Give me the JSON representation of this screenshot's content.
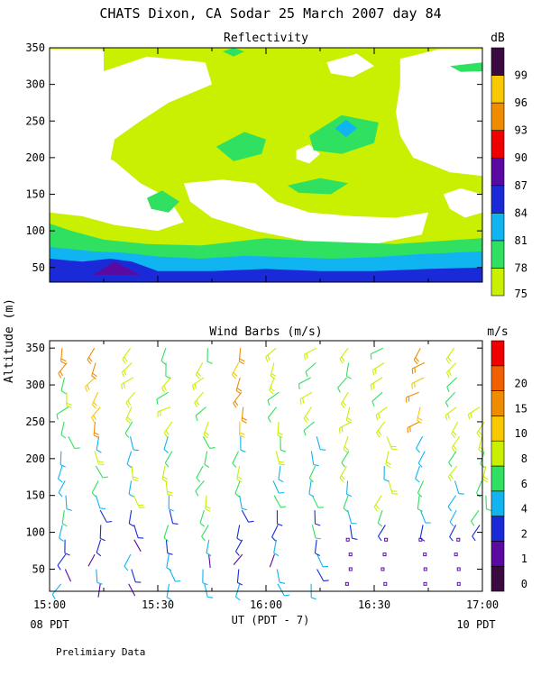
{
  "title": "CHATS Dixon, CA  Sodar  25 March 2007  day  84",
  "shared_ylabel": "Altitude (m)",
  "x_axis": {
    "label": "UT  (PDT - 7)",
    "ticks": [
      "15:00",
      "15:30",
      "16:00",
      "16:30",
      "17:00"
    ],
    "left_note": "08 PDT",
    "right_note": "10 PDT"
  },
  "footer": "Prelimiary Data",
  "chart_data": [
    {
      "type": "heatmap",
      "title": "Reflectivity",
      "x_range_hours": [
        15.0,
        17.0
      ],
      "ylim": [
        30,
        350
      ],
      "y_ticks": [
        50,
        100,
        150,
        200,
        250,
        300,
        350
      ],
      "colorbar": {
        "unit": "dB",
        "labels": [
          "75",
          "78",
          "81",
          "84",
          "87",
          "90",
          "93",
          "96",
          "99"
        ],
        "colors": [
          "#c8f000",
          "#30e060",
          "#10b4f0",
          "#1a2ad8",
          "#5a0aa0",
          "#f00000",
          "#f08c00",
          "#f8c800",
          "#3a0a40"
        ]
      },
      "background_level_color": "#c8f000",
      "regions": [
        {
          "level": "<75",
          "color": "#ffffff",
          "points": [
            [
              15.0,
              348
            ],
            [
              15.25,
              348
            ],
            [
              15.25,
              318
            ],
            [
              15.45,
              338
            ],
            [
              15.72,
              330
            ],
            [
              15.75,
              300
            ],
            [
              15.55,
              275
            ],
            [
              15.42,
              250
            ],
            [
              15.3,
              225
            ],
            [
              15.28,
              195
            ],
            [
              15.12,
              175
            ],
            [
              15.0,
              185
            ]
          ]
        },
        {
          "level": "<75",
          "color": "#ffffff",
          "points": [
            [
              15.0,
              220
            ],
            [
              15.2,
              210
            ],
            [
              15.3,
              195
            ],
            [
              15.42,
              165
            ],
            [
              15.55,
              145
            ],
            [
              15.62,
              112
            ],
            [
              15.5,
              100
            ],
            [
              15.3,
              108
            ],
            [
              15.15,
              120
            ],
            [
              15.0,
              125
            ]
          ]
        },
        {
          "level": "<75",
          "color": "#ffffff",
          "points": [
            [
              15.62,
              165
            ],
            [
              15.8,
              170
            ],
            [
              15.95,
              165
            ],
            [
              16.05,
              140
            ],
            [
              16.2,
              125
            ],
            [
              16.4,
              120
            ],
            [
              16.6,
              118
            ],
            [
              16.75,
              125
            ],
            [
              16.72,
              95
            ],
            [
              16.5,
              82
            ],
            [
              16.2,
              85
            ],
            [
              15.95,
              100
            ],
            [
              15.75,
              118
            ],
            [
              15.65,
              140
            ]
          ]
        },
        {
          "level": "<75",
          "color": "#ffffff",
          "points": [
            [
              16.62,
              335
            ],
            [
              16.8,
              348
            ],
            [
              17.0,
              348
            ],
            [
              17.0,
              175
            ],
            [
              16.85,
              180
            ],
            [
              16.68,
              200
            ],
            [
              16.62,
              230
            ],
            [
              16.6,
              262
            ],
            [
              16.62,
              300
            ]
          ]
        },
        {
          "level": "<75",
          "color": "#ffffff",
          "points": [
            [
              16.28,
              330
            ],
            [
              16.42,
              342
            ],
            [
              16.5,
              325
            ],
            [
              16.4,
              310
            ],
            [
              16.3,
              315
            ]
          ]
        },
        {
          "level": "<75",
          "color": "#ffffff",
          "points": [
            [
              16.14,
              210
            ],
            [
              16.2,
              218
            ],
            [
              16.25,
              205
            ],
            [
              16.2,
              192
            ],
            [
              16.14,
              198
            ]
          ]
        },
        {
          "level": "<75",
          "color": "#ffffff",
          "points": [
            [
              16.82,
              150
            ],
            [
              16.9,
              158
            ],
            [
              17.0,
              150
            ],
            [
              17.0,
              125
            ],
            [
              16.92,
              118
            ],
            [
              16.85,
              130
            ]
          ]
        },
        {
          "level": "78",
          "color": "#30e060",
          "points": [
            [
              15.0,
              110
            ],
            [
              15.1,
              100
            ],
            [
              15.25,
              88
            ],
            [
              15.45,
              82
            ],
            [
              15.7,
              80
            ],
            [
              15.85,
              85
            ],
            [
              16.0,
              90
            ],
            [
              16.2,
              86
            ],
            [
              16.4,
              84
            ],
            [
              16.6,
              82
            ],
            [
              16.8,
              86
            ],
            [
              17.0,
              90
            ],
            [
              17.0,
              30
            ],
            [
              15.0,
              30
            ]
          ]
        },
        {
          "level": "78",
          "color": "#30e060",
          "points": [
            [
              15.77,
              215
            ],
            [
              15.9,
              235
            ],
            [
              16.0,
              225
            ],
            [
              15.98,
              205
            ],
            [
              15.85,
              195
            ]
          ]
        },
        {
          "level": "78",
          "color": "#30e060",
          "points": [
            [
              16.2,
              230
            ],
            [
              16.35,
              258
            ],
            [
              16.52,
              248
            ],
            [
              16.5,
              220
            ],
            [
              16.35,
              205
            ],
            [
              16.22,
              210
            ]
          ]
        },
        {
          "level": "78",
          "color": "#30e060",
          "points": [
            [
              15.45,
              145
            ],
            [
              15.52,
              155
            ],
            [
              15.6,
              140
            ],
            [
              15.55,
              125
            ],
            [
              15.47,
              130
            ]
          ]
        },
        {
          "level": "78",
          "color": "#30e060",
          "points": [
            [
              16.1,
              162
            ],
            [
              16.25,
              172
            ],
            [
              16.38,
              165
            ],
            [
              16.3,
              150
            ],
            [
              16.15,
              152
            ]
          ]
        },
        {
          "level": "78",
          "color": "#30e060",
          "points": [
            [
              16.85,
              325
            ],
            [
              17.0,
              330
            ],
            [
              17.0,
              318
            ],
            [
              16.9,
              317
            ]
          ]
        },
        {
          "level": "78",
          "color": "#30e060",
          "points": [
            [
              15.8,
              345
            ],
            [
              15.85,
              350
            ],
            [
              15.9,
              345
            ],
            [
              15.85,
              338
            ]
          ]
        },
        {
          "level": "81",
          "color": "#10b4f0",
          "points": [
            [
              15.0,
              78
            ],
            [
              15.2,
              72
            ],
            [
              15.35,
              70
            ],
            [
              15.5,
              65
            ],
            [
              15.7,
              62
            ],
            [
              15.9,
              66
            ],
            [
              16.1,
              64
            ],
            [
              16.3,
              62
            ],
            [
              16.5,
              64
            ],
            [
              16.7,
              68
            ],
            [
              16.85,
              70
            ],
            [
              17.0,
              72
            ],
            [
              17.0,
              30
            ],
            [
              15.0,
              30
            ]
          ]
        },
        {
          "level": "81",
          "color": "#10b4f0",
          "points": [
            [
              16.32,
              240
            ],
            [
              16.37,
              252
            ],
            [
              16.42,
              240
            ],
            [
              16.37,
              228
            ]
          ]
        },
        {
          "level": "84",
          "color": "#1a2ad8",
          "points": [
            [
              15.0,
              62
            ],
            [
              15.15,
              58
            ],
            [
              15.28,
              62
            ],
            [
              15.38,
              58
            ],
            [
              15.5,
              45
            ],
            [
              15.75,
              45
            ],
            [
              16.0,
              48
            ],
            [
              16.25,
              45
            ],
            [
              16.5,
              45
            ],
            [
              16.75,
              48
            ],
            [
              17.0,
              50
            ],
            [
              17.0,
              30
            ],
            [
              15.0,
              30
            ]
          ]
        },
        {
          "level": "87",
          "color": "#5a0aa0",
          "points": [
            [
              15.2,
              40
            ],
            [
              15.3,
              58
            ],
            [
              15.42,
              40
            ]
          ]
        }
      ]
    },
    {
      "type": "wind_barbs",
      "title": "Wind Barbs (m/s)",
      "x_range_hours": [
        15.0,
        17.0
      ],
      "ylim": [
        20,
        360
      ],
      "y_ticks": [
        50,
        100,
        150,
        200,
        250,
        300,
        350
      ],
      "times": [
        15.07,
        15.22,
        15.38,
        15.55,
        15.72,
        15.88,
        16.05,
        16.22,
        16.38,
        16.55,
        16.72,
        16.88,
        17.0
      ],
      "altitudes": [
        30,
        50,
        70,
        90,
        110,
        130,
        150,
        170,
        190,
        210,
        230,
        250,
        270,
        290,
        310,
        330,
        350
      ],
      "colorbar": {
        "unit": "m/s",
        "labels": [
          "0",
          "1",
          "2",
          "4",
          "6",
          "8",
          "10",
          "15",
          "20"
        ],
        "colors": [
          "#3a0a40",
          "#5a0aa0",
          "#1a2ad8",
          "#10b4f0",
          "#30e060",
          "#c8f000",
          "#f8c800",
          "#f08c00",
          "#f06000",
          "#f00000"
        ]
      }
    }
  ]
}
